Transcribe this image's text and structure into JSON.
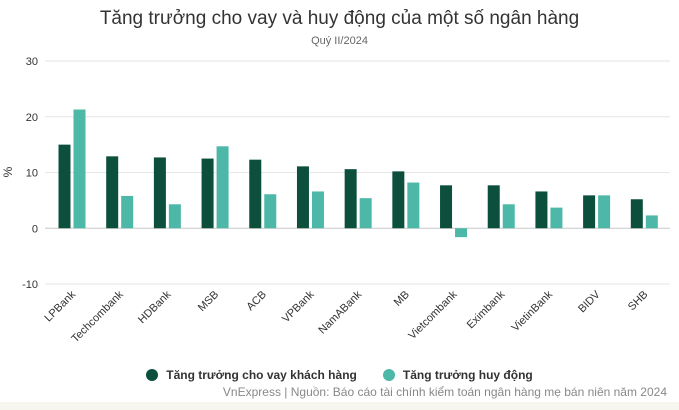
{
  "chart_data": {
    "type": "bar",
    "title": "Tăng trưởng cho vay và huy động của một số ngân hàng",
    "subtitle": "Quý II/2024",
    "xlabel": "",
    "ylabel": "%",
    "ylim": [
      -10,
      30
    ],
    "yticks": [
      "30",
      "20",
      "10",
      "0",
      "-10"
    ],
    "grid": true,
    "legend": "bottom-center",
    "categories": [
      "LPBank",
      "Techcombank",
      "HDBank",
      "MSB",
      "ACB",
      "VPBank",
      "NamABank",
      "MB",
      "Vietcombank",
      "Eximbank",
      "VietinBank",
      "BIDV",
      "SHB"
    ],
    "series": [
      {
        "name": "Tăng trưởng cho vay khách hàng",
        "color": "#0b4f3c",
        "values": [
          15.0,
          12.9,
          12.7,
          12.5,
          12.3,
          11.1,
          10.6,
          10.2,
          7.7,
          7.7,
          6.6,
          5.9,
          5.2
        ]
      },
      {
        "name": "Tăng trưởng huy động",
        "color": "#4db8a8",
        "values": [
          21.3,
          5.8,
          4.3,
          14.7,
          6.1,
          6.6,
          5.4,
          8.2,
          -1.6,
          4.3,
          3.7,
          5.9,
          2.3
        ]
      }
    ],
    "source": "VnExpress | Nguồn: Báo cáo tài chính kiểm toán ngân hàng mẹ bán niên năm 2024"
  }
}
